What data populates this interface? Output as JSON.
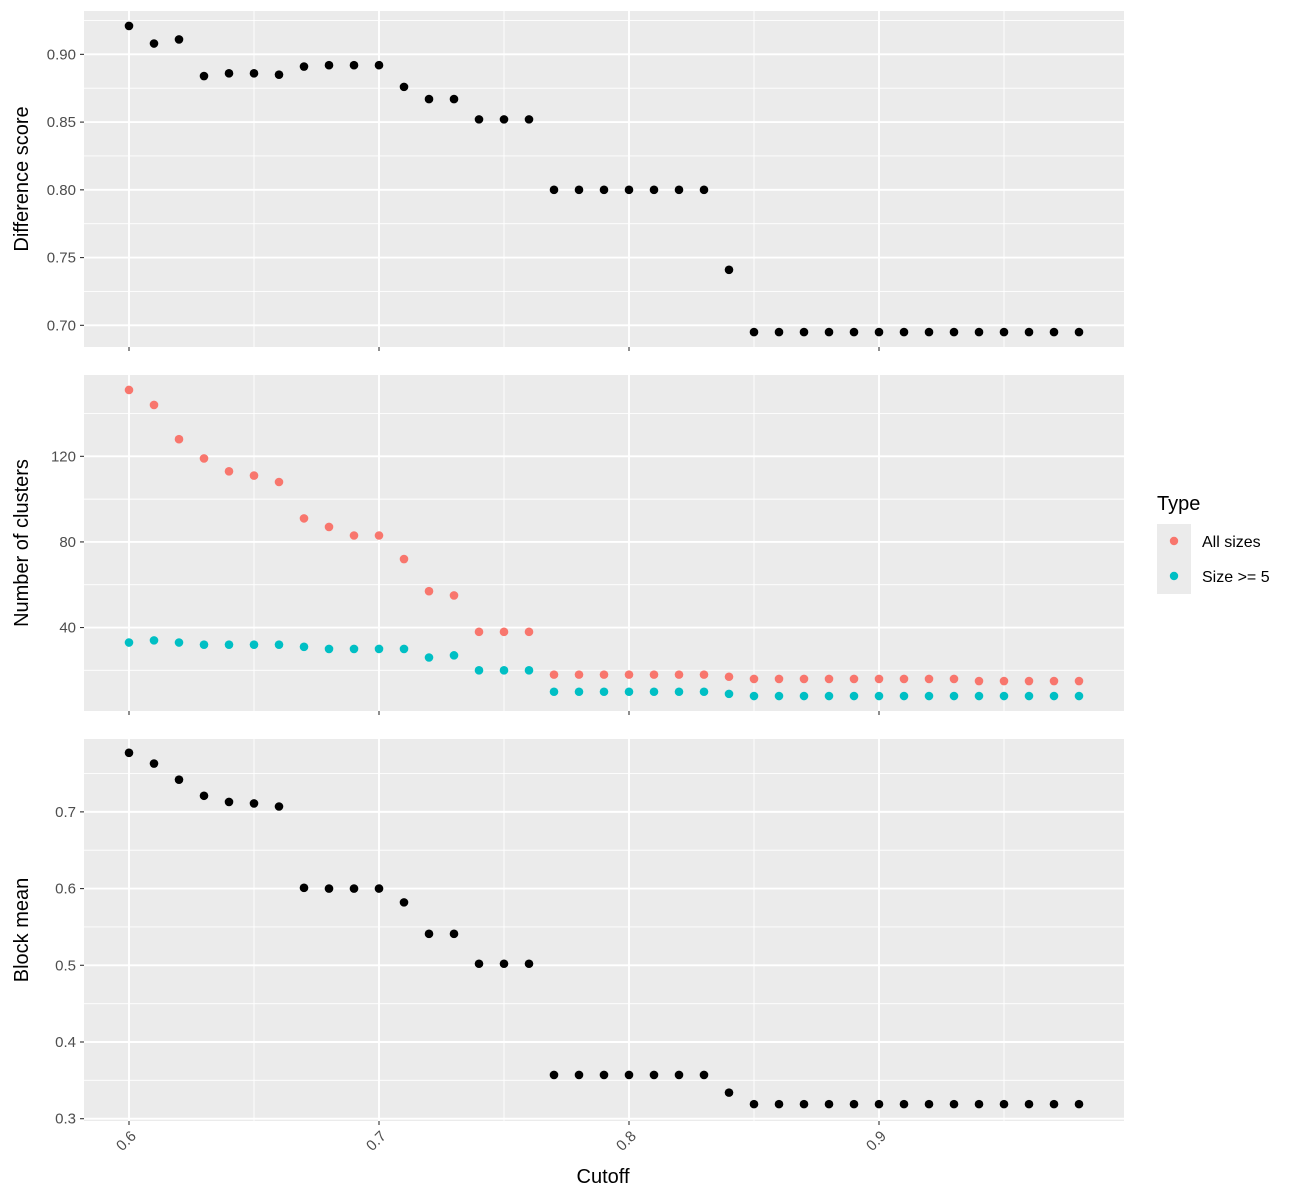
{
  "colors": {
    "panel_background": "#ebebeb",
    "grid": "#ffffff",
    "black_points": "#000000",
    "all_sizes": "#f8766d",
    "size_ge_5": "#00bfc4"
  },
  "chart_data": {
    "type": "scatter",
    "xlabel": "Cutoff",
    "x_ticks": [
      "0.6",
      "0.7",
      "0.8",
      "0.9"
    ],
    "xlim": [
      0.582,
      0.998
    ],
    "x": [
      0.6,
      0.61,
      0.62,
      0.63,
      0.64,
      0.65,
      0.66,
      0.67,
      0.68,
      0.69,
      0.7,
      0.71,
      0.72,
      0.73,
      0.74,
      0.75,
      0.76,
      0.77,
      0.78,
      0.79,
      0.8,
      0.81,
      0.82,
      0.83,
      0.84,
      0.85,
      0.86,
      0.87,
      0.88,
      0.89,
      0.9,
      0.91,
      0.92,
      0.93,
      0.94,
      0.95,
      0.96,
      0.97,
      0.98
    ],
    "panels": [
      {
        "ylabel": "Difference score",
        "ylim": [
          0.684,
          0.932
        ],
        "y_ticks": [
          0.7,
          0.75,
          0.8,
          0.85,
          0.9
        ],
        "y_tick_labels": [
          "0.70",
          "0.75",
          "0.80",
          "0.85",
          "0.90"
        ],
        "series": [
          {
            "color": "#000000",
            "values": [
              0.921,
              0.908,
              0.911,
              0.884,
              0.886,
              0.886,
              0.885,
              0.891,
              0.892,
              0.892,
              0.892,
              0.876,
              0.867,
              0.867,
              0.852,
              0.852,
              0.852,
              0.8,
              0.8,
              0.8,
              0.8,
              0.8,
              0.8,
              0.8,
              0.741,
              0.695,
              0.695,
              0.695,
              0.695,
              0.695,
              0.695,
              0.695,
              0.695,
              0.695,
              0.695,
              0.695,
              0.695,
              0.695,
              0.695
            ]
          }
        ]
      },
      {
        "ylabel": "Number of clusters",
        "ylim": [
          1,
          158
        ],
        "y_ticks": [
          40,
          80,
          120
        ],
        "y_tick_labels": [
          "40",
          "80",
          "120"
        ],
        "series": [
          {
            "name": "All sizes",
            "color": "#f8766d",
            "values": [
              151,
              144,
              128,
              119,
              113,
              111,
              108,
              91,
              87,
              83,
              83,
              72,
              57,
              55,
              38,
              38,
              38,
              18,
              18,
              18,
              18,
              18,
              18,
              18,
              17,
              16,
              16,
              16,
              16,
              16,
              16,
              16,
              16,
              16,
              15,
              15,
              15,
              15,
              15
            ]
          },
          {
            "name": "Size >= 5",
            "color": "#00bfc4",
            "values": [
              33,
              34,
              33,
              32,
              32,
              32,
              32,
              31,
              30,
              30,
              30,
              30,
              26,
              27,
              20,
              20,
              20,
              10,
              10,
              10,
              10,
              10,
              10,
              10,
              9,
              8,
              8,
              8,
              8,
              8,
              8,
              8,
              8,
              8,
              8,
              8,
              8,
              8,
              8
            ]
          }
        ]
      },
      {
        "ylabel": "Block mean",
        "ylim": [
          0.297,
          0.795
        ],
        "y_ticks": [
          0.3,
          0.4,
          0.5,
          0.6,
          0.7
        ],
        "y_tick_labels": [
          "0.3",
          "0.4",
          "0.5",
          "0.6",
          "0.7"
        ],
        "series": [
          {
            "color": "#000000",
            "values": [
              0.777,
              0.763,
              0.742,
              0.721,
              0.713,
              0.711,
              0.707,
              0.601,
              0.6,
              0.6,
              0.6,
              0.582,
              0.541,
              0.541,
              0.502,
              0.502,
              0.502,
              0.357,
              0.357,
              0.357,
              0.357,
              0.357,
              0.357,
              0.357,
              0.334,
              0.319,
              0.319,
              0.319,
              0.319,
              0.319,
              0.319,
              0.319,
              0.319,
              0.319,
              0.319,
              0.319,
              0.319,
              0.319,
              0.319
            ]
          }
        ]
      }
    ],
    "legend": {
      "title": "Type",
      "items": [
        "All sizes",
        "Size >= 5"
      ],
      "placement": "right"
    }
  }
}
